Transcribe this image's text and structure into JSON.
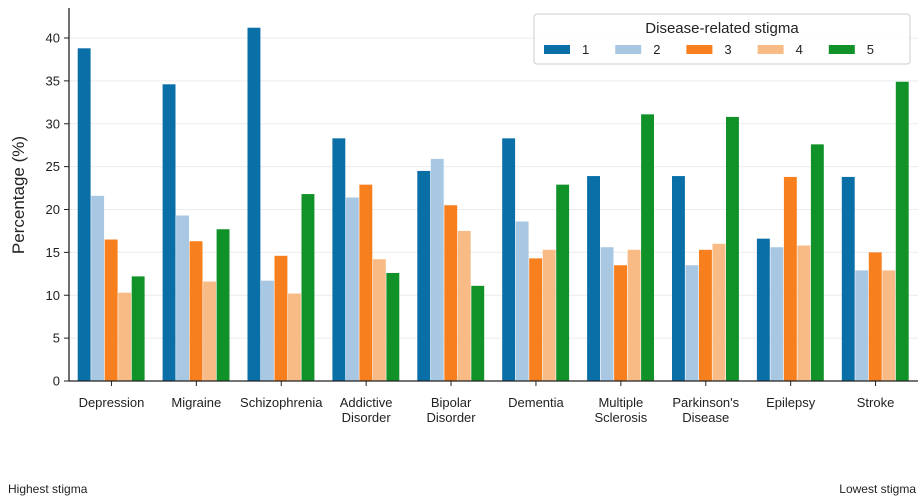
{
  "chart_data": {
    "type": "bar",
    "ylabel": "Percentage (%)",
    "xlabel": "",
    "ylim": [
      0,
      43.5
    ],
    "yticks": [
      0,
      5,
      10,
      15,
      20,
      25,
      30,
      35,
      40
    ],
    "grid": "horizontal",
    "legend": {
      "title": "Disease-related stigma",
      "position": "top-right"
    },
    "categories": [
      [
        "Depression"
      ],
      [
        "Migraine"
      ],
      [
        "Schizophrenia"
      ],
      [
        "Addictive",
        "Disorder"
      ],
      [
        "Bipolar",
        "Disorder"
      ],
      [
        "Dementia"
      ],
      [
        "Multiple",
        "Sclerosis"
      ],
      [
        "Parkinson's",
        "Disease"
      ],
      [
        "Epilepsy"
      ],
      [
        "Stroke"
      ]
    ],
    "series": [
      {
        "name": "1",
        "color": "#0a6fa7",
        "values": [
          38.8,
          34.6,
          41.2,
          28.3,
          24.5,
          28.3,
          23.9,
          23.9,
          16.6,
          23.8
        ]
      },
      {
        "name": "2",
        "color": "#a8c7e3",
        "values": [
          21.6,
          19.3,
          11.7,
          21.4,
          25.9,
          18.6,
          15.6,
          13.5,
          15.6,
          12.9
        ]
      },
      {
        "name": "3",
        "color": "#f77f1d",
        "values": [
          16.5,
          16.3,
          14.6,
          22.9,
          20.5,
          14.3,
          13.5,
          15.3,
          23.8,
          15.0
        ]
      },
      {
        "name": "4",
        "color": "#f8bb86",
        "values": [
          10.3,
          11.6,
          10.2,
          14.2,
          17.5,
          15.3,
          15.3,
          16.0,
          15.8,
          12.9
        ]
      },
      {
        "name": "5",
        "color": "#119229",
        "values": [
          12.2,
          17.7,
          21.8,
          12.6,
          11.1,
          22.9,
          31.1,
          30.8,
          27.6,
          34.9
        ]
      }
    ]
  },
  "footnotes": {
    "left": "Highest stigma",
    "right": "Lowest stigma"
  }
}
